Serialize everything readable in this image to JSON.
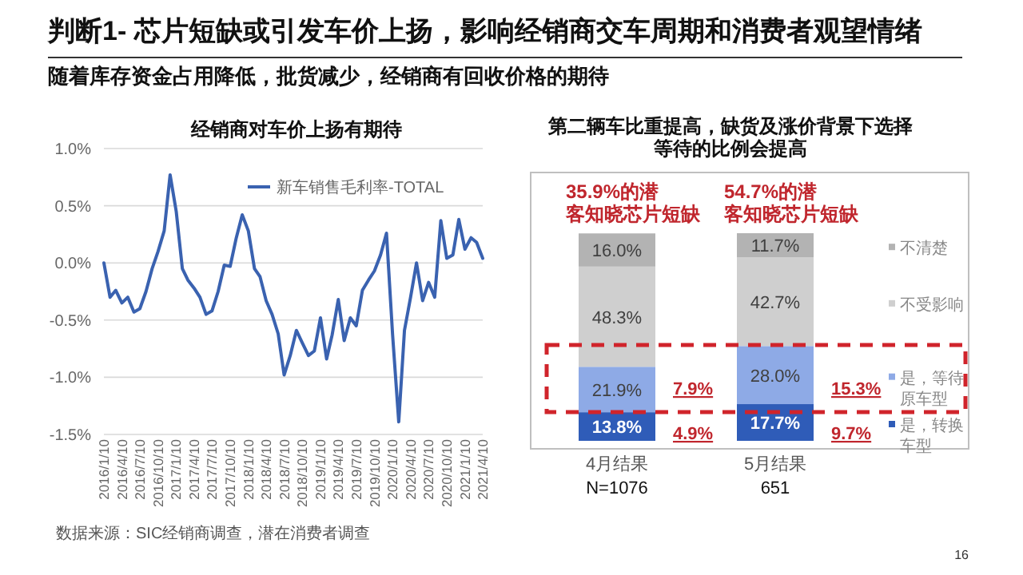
{
  "chart_data": [
    {
      "type": "other",
      "title": "判断1- 芯片短缺或引发车价上扬，影响经销商交车周期和消费者观望情绪",
      "subtitle": "随着库存资金占用降低，批货减少，经销商有回收价格的期待",
      "annotations": [
        "16"
      ]
    },
    {
      "type": "line",
      "title": "经销商对车价上扬有期待",
      "legend": "top",
      "grid": "y",
      "x": [
        "2016-01-10",
        "2016-02-10",
        "2016-03-10",
        "2016-04-10",
        "2016-05-10",
        "2016-06-10",
        "2016-07-10",
        "2016-08-10",
        "2016-09-10",
        "2016-10-10",
        "2016-11-10",
        "2016-12-10",
        "2017-01-10",
        "2017-02-10",
        "2017-03-10",
        "2017-04-10",
        "2017-05-10",
        "2017-06-10",
        "2017-07-10",
        "2017-08-10",
        "2017-09-10",
        "2017-10-10",
        "2017-11-10",
        "2017-12-10",
        "2018-01-10",
        "2018-02-10",
        "2018-03-10",
        "2018-04-10",
        "2018-05-10",
        "2018-06-10",
        "2018-07-10",
        "2018-08-10",
        "2018-09-10",
        "2018-10-10",
        "2018-11-10",
        "2018-12-10",
        "2019-01-10",
        "2019-02-10",
        "2019-03-10",
        "2019-04-10",
        "2019-05-10",
        "2019-06-10",
        "2019-07-10",
        "2019-08-10",
        "2019-09-10",
        "2019-10-10",
        "2019-11-10",
        "2019-12-10",
        "2020-01-10",
        "2020-02-10",
        "2020-03-10",
        "2020-04-10",
        "2020-05-10",
        "2020-06-10",
        "2020-07-10",
        "2020-08-10",
        "2020-09-10",
        "2020-10-10",
        "2020-11-10",
        "2020-12-10",
        "2021-01-10",
        "2021-02-10",
        "2021-03-10",
        "2021-04-10"
      ],
      "series": [
        {
          "name": "新车销售毛利率-TOTAL",
          "color": "#3a62b0",
          "values": [
            0.0,
            -0.3,
            -0.24,
            -0.35,
            -0.3,
            -0.43,
            -0.4,
            -0.25,
            -0.05,
            0.1,
            0.28,
            0.77,
            0.45,
            -0.05,
            -0.15,
            -0.22,
            -0.3,
            -0.45,
            -0.42,
            -0.25,
            -0.02,
            -0.03,
            0.22,
            0.42,
            0.28,
            -0.05,
            -0.12,
            -0.33,
            -0.45,
            -0.62,
            -0.98,
            -0.81,
            -0.59,
            -0.7,
            -0.81,
            -0.77,
            -0.48,
            -0.84,
            -0.63,
            -0.32,
            -0.68,
            -0.48,
            -0.55,
            -0.24,
            -0.15,
            -0.07,
            0.07,
            0.26,
            -0.63,
            -1.39,
            -0.59,
            -0.3,
            0.0,
            -0.33,
            -0.17,
            -0.3,
            0.37,
            0.04,
            0.07,
            0.38,
            0.12,
            0.22,
            0.18,
            0.04
          ]
        }
      ],
      "xlim": [
        "2016-01-10",
        "2021-04-10"
      ],
      "xticks": [
        {
          "value": "2016-01-10",
          "label": "2016/1/10"
        },
        {
          "value": "2016-04-10",
          "label": "2016/4/10"
        },
        {
          "value": "2016-07-10",
          "label": "2016/7/10"
        },
        {
          "value": "2016-10-10",
          "label": "2016/10/10"
        },
        {
          "value": "2017-01-10",
          "label": "2017/1/10"
        },
        {
          "value": "2017-04-10",
          "label": "2017/4/10"
        },
        {
          "value": "2017-07-10",
          "label": "2017/7/10"
        },
        {
          "value": "2017-10-10",
          "label": "2017/10/10"
        },
        {
          "value": "2018-01-10",
          "label": "2018/1/10"
        },
        {
          "value": "2018-04-10",
          "label": "2018/4/10"
        },
        {
          "value": "2018-07-10",
          "label": "2018/7/10"
        },
        {
          "value": "2018-10-10",
          "label": "2018/10/10"
        },
        {
          "value": "2019-01-10",
          "label": "2019/1/10"
        },
        {
          "value": "2019-04-10",
          "label": "2019/4/10"
        },
        {
          "value": "2019-07-10",
          "label": "2019/7/10"
        },
        {
          "value": "2019-10-10",
          "label": "2019/10/10"
        },
        {
          "value": "2020-01-10",
          "label": "2020/1/10"
        },
        {
          "value": "2020-04-10",
          "label": "2020/4/10"
        },
        {
          "value": "2020-07-10",
          "label": "2020/7/10"
        },
        {
          "value": "2020-10-10",
          "label": "2020/10/10"
        },
        {
          "value": "2021-01-10",
          "label": "2021/1/10"
        },
        {
          "value": "2021-04-10",
          "label": "2021/4/10"
        }
      ],
      "ylim": [
        -1.5,
        1.0
      ],
      "yticks": [
        {
          "value": -1.5,
          "label": "-1.5%"
        },
        {
          "value": -1.0,
          "label": "-1.0%"
        },
        {
          "value": -0.5,
          "label": "-0.5%"
        },
        {
          "value": 0,
          "label": "0.0%"
        },
        {
          "value": 0.5,
          "label": "0.5%"
        },
        {
          "value": 1.0,
          "label": "1.0%"
        }
      ],
      "annotations": [
        "数据来源：SIC经销商调查，潜在消费者调查"
      ]
    },
    {
      "type": "bar",
      "title": "第二辆车比重提高，缺货及涨价背景下选择等待的比例会提高",
      "stacked": true,
      "legend": "right",
      "categories": [
        "4月结果",
        "5月结果"
      ],
      "series": [
        {
          "name": "是，转换车型",
          "color": "#2f5cb8",
          "values": [
            13.8,
            17.7
          ],
          "value_labels": [
            "13.8%",
            "17.7%"
          ]
        },
        {
          "name": "是，等待原车型",
          "color": "#8eaae6",
          "values": [
            21.9,
            28.0
          ],
          "value_labels": [
            "21.9%",
            "28.0%"
          ]
        },
        {
          "name": "不受影响",
          "color": "#cfcfcf",
          "values": [
            48.3,
            42.7
          ],
          "value_labels": [
            "48.3%",
            "42.7%"
          ]
        },
        {
          "name": "不清楚",
          "color": "#b3b3b3",
          "values": [
            16.0,
            11.7
          ],
          "value_labels": [
            "16.0%",
            "11.7%"
          ]
        }
      ],
      "annotations": [
        "35.9%的潜客知晓芯片短缺",
        "54.7%的潜客知晓芯片短缺",
        "N=1076",
        "651",
        "7.9%",
        "4.9%",
        "15.3%",
        "9.7%"
      ]
    }
  ]
}
